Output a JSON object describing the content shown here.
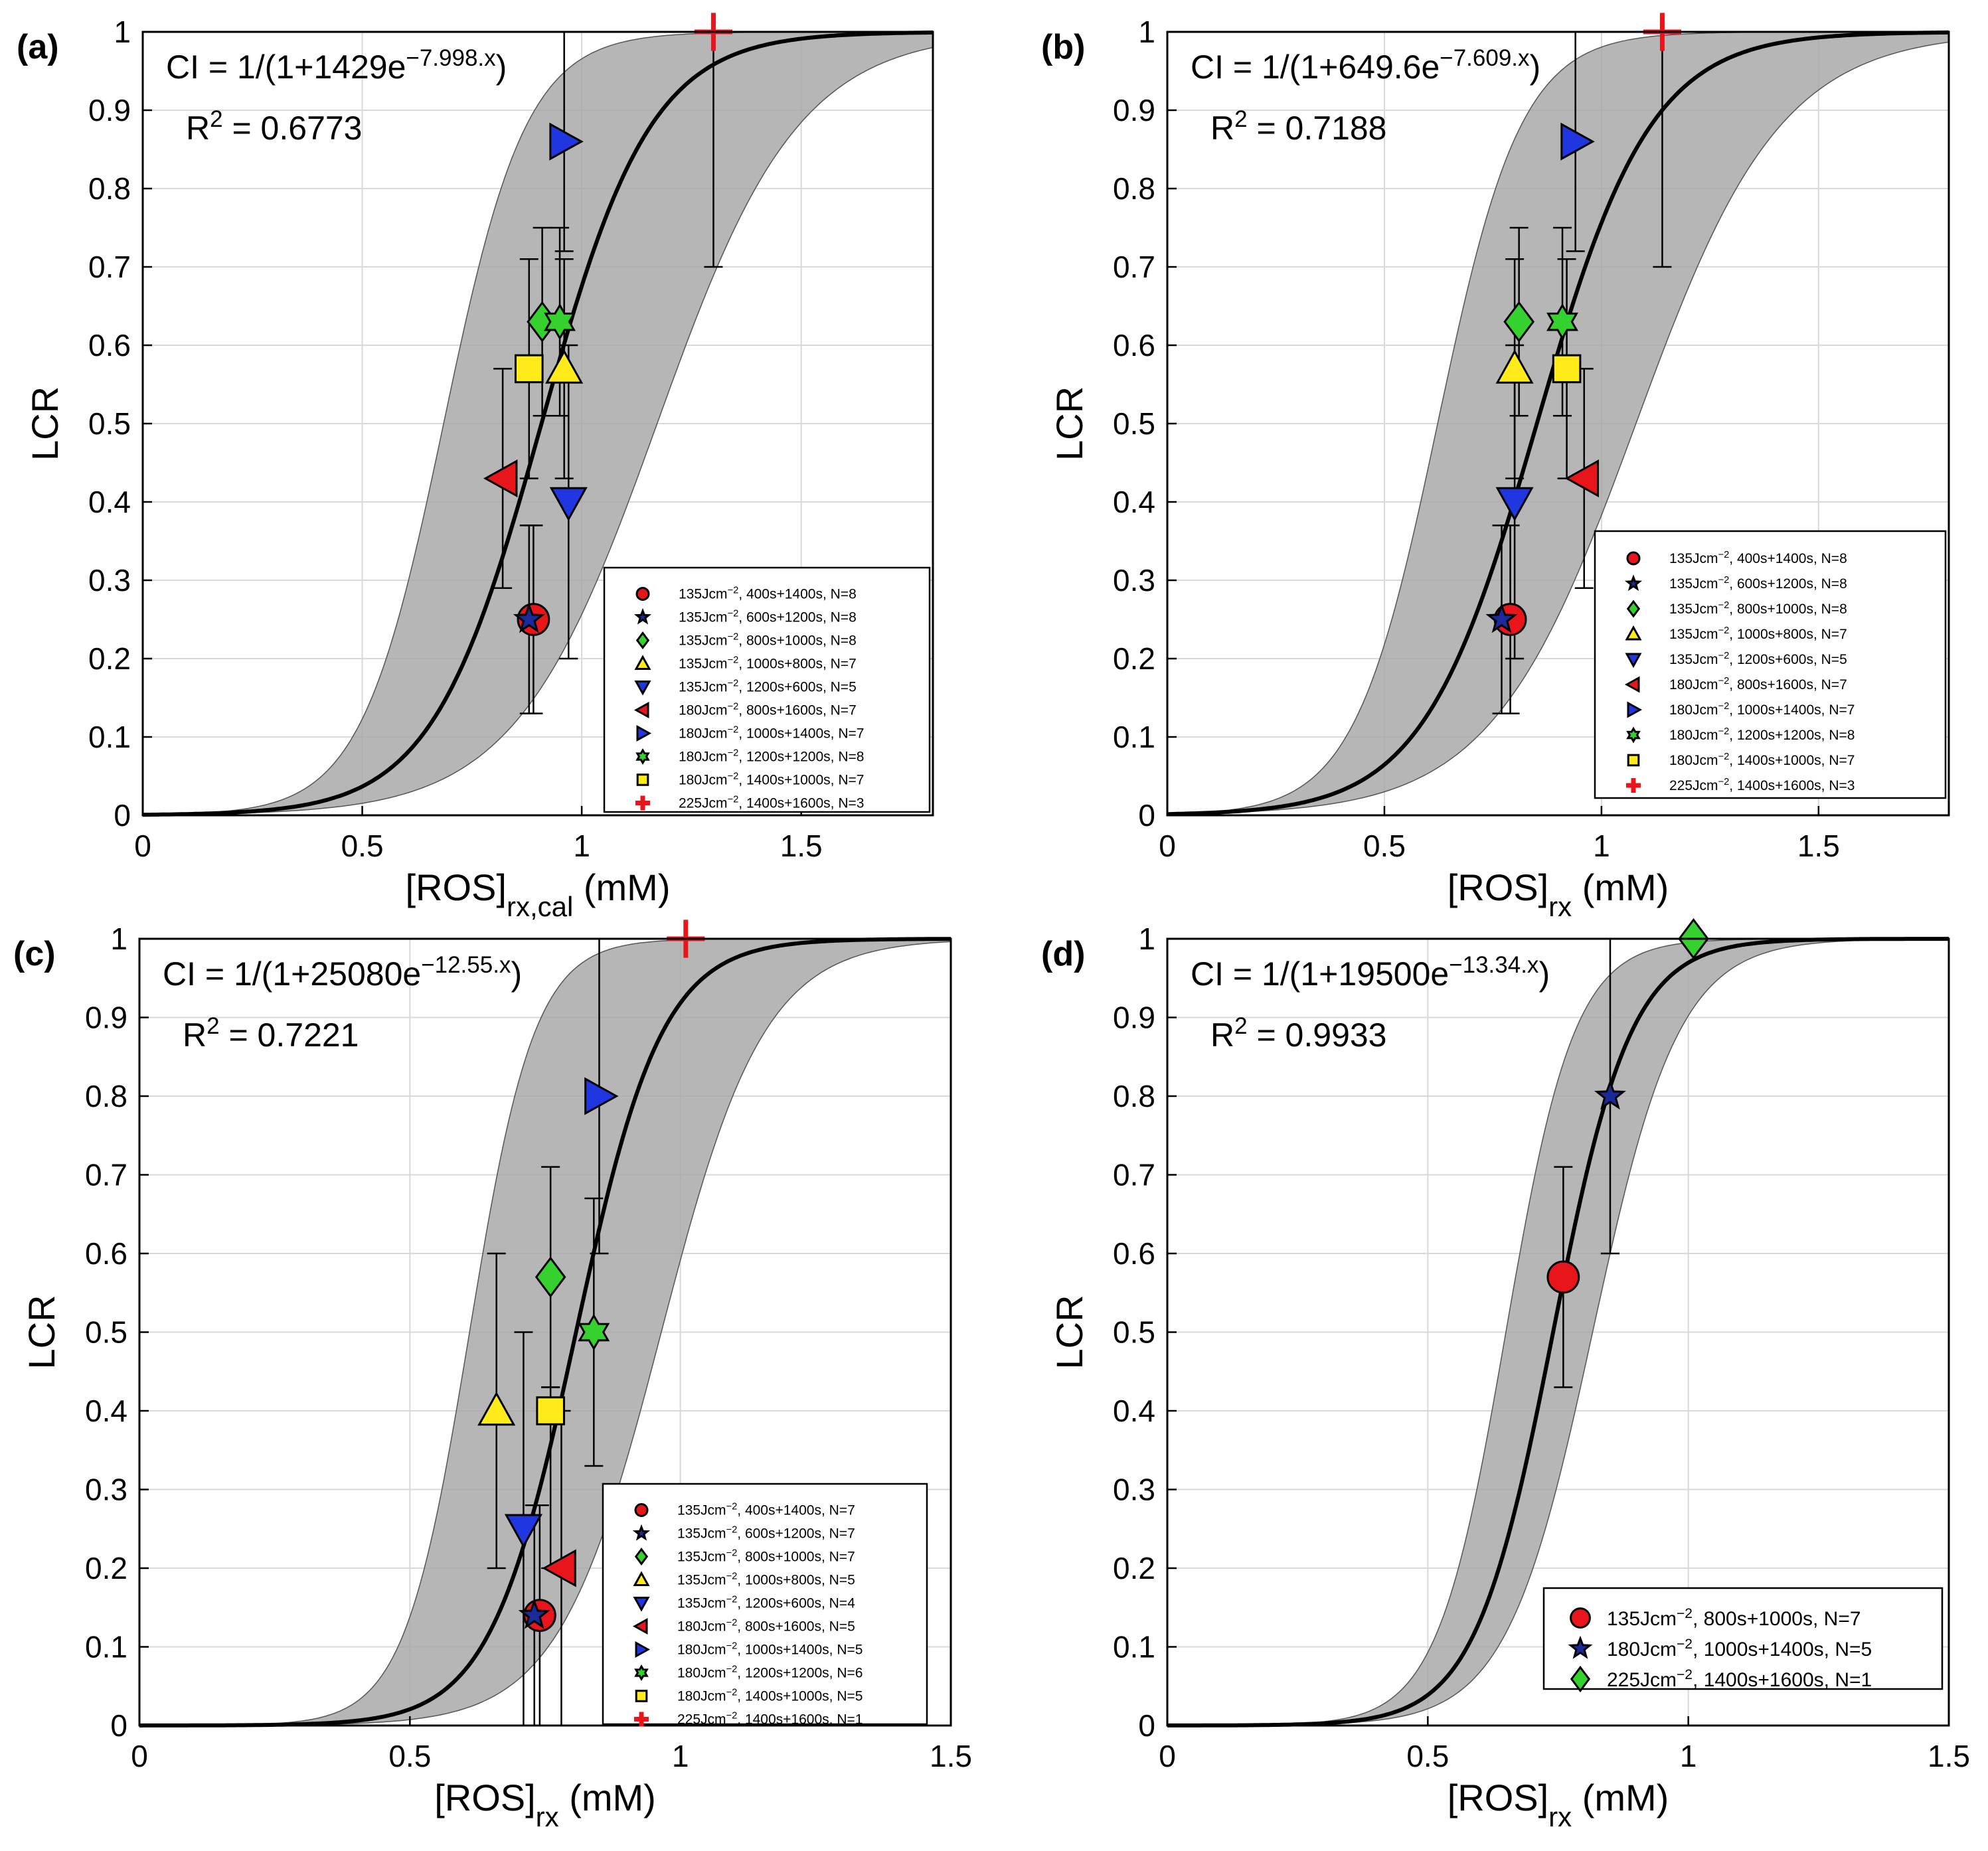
{
  "chart_data": [
    {
      "panel": "(a)",
      "type": "scatter",
      "xlabel": "[ROS]",
      "xlabel_sub": "rx,cal",
      "xlabel_unit": "(mM)",
      "ylabel": "LCR",
      "xlim": [
        0,
        1.8
      ],
      "ylim": [
        0,
        1
      ],
      "xticks": [
        0,
        0.5,
        1,
        1.5
      ],
      "xtick_labels": [
        "0",
        "0.5",
        "1",
        "1.5"
      ],
      "yticks": [
        0,
        0.1,
        0.2,
        0.3,
        0.4,
        0.5,
        0.6,
        0.7,
        0.8,
        0.9,
        1
      ],
      "ytick_labels": [
        "0",
        "0.1",
        "0.2",
        "0.3",
        "0.4",
        "0.5",
        "0.6",
        "0.7",
        "0.8",
        "0.9",
        "1"
      ],
      "grid": true,
      "fit": {
        "A": 1429,
        "k": 7.998,
        "band_low": {
          "A": 1429,
          "k": 10.6
        },
        "band_high": {
          "A": 1429,
          "k": 6.2
        }
      },
      "equation_prefix": "CI = 1/(1+1429e",
      "equation_exp": "−7.998.x",
      "equation_suffix": ")",
      "r2_prefix": "R",
      "r2_exp": "2",
      "r2_suffix": " = 0.6773",
      "legend_position": "bottom-right",
      "points": [
        {
          "label_prefix": "135Jcm",
          "label_exp": "−2",
          "label_suffix": ", 400s+1400s, N=8",
          "marker": "circle",
          "color": "#e8161b",
          "x": 0.89,
          "y": 0.25,
          "err_low": 0.13,
          "err_high": 0.37
        },
        {
          "label_prefix": "135Jcm",
          "label_exp": "−2",
          "label_suffix": ", 600s+1200s, N=8",
          "marker": "star",
          "color": "#1a2a9a",
          "x": 0.88,
          "y": 0.25,
          "err_low": 0.13,
          "err_high": 0.37
        },
        {
          "label_prefix": "135Jcm",
          "label_exp": "−2",
          "label_suffix": ", 800s+1000s, N=8",
          "marker": "diamond",
          "color": "#35d12f",
          "x": 0.91,
          "y": 0.63,
          "err_low": 0.51,
          "err_high": 0.75
        },
        {
          "label_prefix": "135Jcm",
          "label_exp": "−2",
          "label_suffix": ", 1000s+800s, N=7",
          "marker": "triangle-up",
          "color": "#ffea1a",
          "x": 0.96,
          "y": 0.57,
          "err_low": 0.43,
          "err_high": 0.71
        },
        {
          "label_prefix": "135Jcm",
          "label_exp": "−2",
          "label_suffix": ", 1200s+600s, N=5",
          "marker": "triangle-down",
          "color": "#1f36e0",
          "x": 0.97,
          "y": 0.4,
          "err_low": 0.2,
          "err_high": 0.6
        },
        {
          "label_prefix": "180Jcm",
          "label_exp": "−2",
          "label_suffix": ", 800s+1600s, N=7",
          "marker": "triangle-left",
          "color": "#e8161b",
          "x": 0.82,
          "y": 0.43,
          "err_low": 0.29,
          "err_high": 0.57
        },
        {
          "label_prefix": "180Jcm",
          "label_exp": "−2",
          "label_suffix": ", 1000s+1400s, N=7",
          "marker": "triangle-right",
          "color": "#1f36e0",
          "x": 0.96,
          "y": 0.86,
          "err_low": 0.72,
          "err_high": 1.0
        },
        {
          "label_prefix": "180Jcm",
          "label_exp": "−2",
          "label_suffix": ", 1200s+1200s, N=8",
          "marker": "hexagram",
          "color": "#35d12f",
          "x": 0.95,
          "y": 0.63,
          "err_low": 0.51,
          "err_high": 0.75
        },
        {
          "label_prefix": "180Jcm",
          "label_exp": "−2",
          "label_suffix": ", 1400s+1000s, N=7",
          "marker": "square",
          "color": "#ffea1a",
          "x": 0.88,
          "y": 0.57,
          "err_low": 0.43,
          "err_high": 0.71
        },
        {
          "label_prefix": "225Jcm",
          "label_exp": "−2",
          "label_suffix": ", 1400s+1600s, N=3",
          "marker": "plus",
          "color": "#e8161b",
          "x": 1.3,
          "y": 1.0,
          "err_low": 0.7,
          "err_high": 1.0
        }
      ]
    },
    {
      "panel": "(b)",
      "type": "scatter",
      "xlabel": "[ROS]",
      "xlabel_sub": "rx",
      "xlabel_unit": "(mM)",
      "ylabel": "LCR",
      "xlim": [
        0,
        1.8
      ],
      "ylim": [
        0,
        1
      ],
      "xticks": [
        0,
        0.5,
        1,
        1.5
      ],
      "xtick_labels": [
        "0",
        "0.5",
        "1",
        "1.5"
      ],
      "yticks": [
        0,
        0.1,
        0.2,
        0.3,
        0.4,
        0.5,
        0.6,
        0.7,
        0.8,
        0.9,
        1
      ],
      "ytick_labels": [
        "0",
        "0.1",
        "0.2",
        "0.3",
        "0.4",
        "0.5",
        "0.6",
        "0.7",
        "0.8",
        "0.9",
        "1"
      ],
      "grid": true,
      "fit": {
        "A": 649.6,
        "k": 7.609,
        "band_low": {
          "A": 649.6,
          "k": 10.4
        },
        "band_high": {
          "A": 649.6,
          "k": 6.0
        }
      },
      "equation_prefix": "CI = 1/(1+649.6e",
      "equation_exp": "−7.609.x",
      "equation_suffix": ")",
      "r2_prefix": "R",
      "r2_exp": "2",
      "r2_suffix": " = 0.7188",
      "legend_position": "bottom-right",
      "points": [
        {
          "label_prefix": "135Jcm",
          "label_exp": "−2",
          "label_suffix": ", 400s+1400s, N=8",
          "marker": "circle",
          "color": "#e8161b",
          "x": 0.79,
          "y": 0.25,
          "err_low": 0.13,
          "err_high": 0.37
        },
        {
          "label_prefix": "135Jcm",
          "label_exp": "−2",
          "label_suffix": ", 600s+1200s, N=8",
          "marker": "star",
          "color": "#1a2a9a",
          "x": 0.77,
          "y": 0.25,
          "err_low": 0.13,
          "err_high": 0.37
        },
        {
          "label_prefix": "135Jcm",
          "label_exp": "−2",
          "label_suffix": ", 800s+1000s, N=8",
          "marker": "diamond",
          "color": "#35d12f",
          "x": 0.81,
          "y": 0.63,
          "err_low": 0.51,
          "err_high": 0.75
        },
        {
          "label_prefix": "135Jcm",
          "label_exp": "−2",
          "label_suffix": ", 1000s+800s, N=7",
          "marker": "triangle-up",
          "color": "#ffea1a",
          "x": 0.8,
          "y": 0.57,
          "err_low": 0.43,
          "err_high": 0.71
        },
        {
          "label_prefix": "135Jcm",
          "label_exp": "−2",
          "label_suffix": ", 1200s+600s, N=5",
          "marker": "triangle-down",
          "color": "#1f36e0",
          "x": 0.8,
          "y": 0.4,
          "err_low": 0.2,
          "err_high": 0.6
        },
        {
          "label_prefix": "180Jcm",
          "label_exp": "−2",
          "label_suffix": ", 800s+1600s, N=7",
          "marker": "triangle-left",
          "color": "#e8161b",
          "x": 0.96,
          "y": 0.43,
          "err_low": 0.29,
          "err_high": 0.57
        },
        {
          "label_prefix": "180Jcm",
          "label_exp": "−2",
          "label_suffix": ", 1000s+1400s, N=7",
          "marker": "triangle-right",
          "color": "#1f36e0",
          "x": 0.94,
          "y": 0.86,
          "err_low": 0.72,
          "err_high": 1.0
        },
        {
          "label_prefix": "180Jcm",
          "label_exp": "−2",
          "label_suffix": ", 1200s+1200s, N=8",
          "marker": "hexagram",
          "color": "#35d12f",
          "x": 0.91,
          "y": 0.63,
          "err_low": 0.51,
          "err_high": 0.75
        },
        {
          "label_prefix": "180Jcm",
          "label_exp": "−2",
          "label_suffix": ", 1400s+1000s, N=7",
          "marker": "square",
          "color": "#ffea1a",
          "x": 0.92,
          "y": 0.57,
          "err_low": 0.43,
          "err_high": 0.71
        },
        {
          "label_prefix": "225Jcm",
          "label_exp": "−2",
          "label_suffix": ", 1400s+1600s, N=3",
          "marker": "plus",
          "color": "#e8161b",
          "x": 1.14,
          "y": 1.0,
          "err_low": 0.7,
          "err_high": 1.0
        }
      ]
    },
    {
      "panel": "(c)",
      "type": "scatter",
      "xlabel": "[ROS]",
      "xlabel_sub": "rx",
      "xlabel_unit": "(mM)",
      "ylabel": "LCR",
      "xlim": [
        0,
        1.5
      ],
      "ylim": [
        0,
        1
      ],
      "xticks": [
        0,
        0.5,
        1,
        1.5
      ],
      "xtick_labels": [
        "0",
        "0.5",
        "1",
        "1.5"
      ],
      "yticks": [
        0,
        0.1,
        0.2,
        0.3,
        0.4,
        0.5,
        0.6,
        0.7,
        0.8,
        0.9,
        1
      ],
      "ytick_labels": [
        "0",
        "0.1",
        "0.2",
        "0.3",
        "0.4",
        "0.5",
        "0.6",
        "0.7",
        "0.8",
        "0.9",
        "1"
      ],
      "grid": true,
      "fit": {
        "A": 25080,
        "k": 12.55,
        "band_low": {
          "A": 25080,
          "k": 16.6
        },
        "band_high": {
          "A": 25080,
          "k": 10.5
        }
      },
      "equation_prefix": "CI = 1/(1+25080e",
      "equation_exp": "−12.55.x",
      "equation_suffix": ")",
      "r2_prefix": "R",
      "r2_exp": "2",
      "r2_suffix": " = 0.7221",
      "legend_position": "bottom-right",
      "points": [
        {
          "label_prefix": "135Jcm",
          "label_exp": "−2",
          "label_suffix": ", 400s+1400s, N=7",
          "marker": "circle",
          "color": "#e8161b",
          "x": 0.74,
          "y": 0.14,
          "err_low": 0.0,
          "err_high": 0.28
        },
        {
          "label_prefix": "135Jcm",
          "label_exp": "−2",
          "label_suffix": ", 600s+1200s, N=7",
          "marker": "star",
          "color": "#1a2a9a",
          "x": 0.73,
          "y": 0.14,
          "err_low": 0.0,
          "err_high": 0.28
        },
        {
          "label_prefix": "135Jcm",
          "label_exp": "−2",
          "label_suffix": ", 800s+1000s, N=7",
          "marker": "diamond",
          "color": "#35d12f",
          "x": 0.76,
          "y": 0.57,
          "err_low": 0.43,
          "err_high": 0.71
        },
        {
          "label_prefix": "135Jcm",
          "label_exp": "−2",
          "label_suffix": ", 1000s+800s, N=5",
          "marker": "triangle-up",
          "color": "#ffea1a",
          "x": 0.66,
          "y": 0.4,
          "err_low": 0.2,
          "err_high": 0.6
        },
        {
          "label_prefix": "135Jcm",
          "label_exp": "−2",
          "label_suffix": ", 1200s+600s, N=4",
          "marker": "triangle-down",
          "color": "#1f36e0",
          "x": 0.71,
          "y": 0.25,
          "err_low": 0.0,
          "err_high": 0.5
        },
        {
          "label_prefix": "180Jcm",
          "label_exp": "−2",
          "label_suffix": ", 800s+1600s, N=5",
          "marker": "triangle-left",
          "color": "#e8161b",
          "x": 0.78,
          "y": 0.2,
          "err_low": 0.0,
          "err_high": 0.4
        },
        {
          "label_prefix": "180Jcm",
          "label_exp": "−2",
          "label_suffix": ", 1000s+1400s, N=5",
          "marker": "triangle-right",
          "color": "#1f36e0",
          "x": 0.85,
          "y": 0.8,
          "err_low": 0.6,
          "err_high": 1.0
        },
        {
          "label_prefix": "180Jcm",
          "label_exp": "−2",
          "label_suffix": ", 1200s+1200s, N=6",
          "marker": "hexagram",
          "color": "#35d12f",
          "x": 0.84,
          "y": 0.5,
          "err_low": 0.33,
          "err_high": 0.67
        },
        {
          "label_prefix": "180Jcm",
          "label_exp": "−2",
          "label_suffix": ", 1400s+1000s, N=5",
          "marker": "square",
          "color": "#ffea1a",
          "x": 0.76,
          "y": 0.4,
          "err_low": 0.2,
          "err_high": 0.43
        },
        {
          "label_prefix": "225Jcm",
          "label_exp": "−2",
          "label_suffix": ", 1400s+1600s, N=1",
          "marker": "plus",
          "color": "#e8161b",
          "x": 1.01,
          "y": 1.0,
          "err_low": 1.0,
          "err_high": 1.0
        }
      ]
    },
    {
      "panel": "(d)",
      "type": "scatter",
      "xlabel": "[ROS]",
      "xlabel_sub": "rx",
      "xlabel_unit": "(mM)",
      "ylabel": "LCR",
      "xlim": [
        0,
        1.5
      ],
      "ylim": [
        0,
        1
      ],
      "xticks": [
        0,
        0.5,
        1,
        1.5
      ],
      "xtick_labels": [
        "0",
        "0.5",
        "1",
        "1.5"
      ],
      "yticks": [
        0,
        0.1,
        0.2,
        0.3,
        0.4,
        0.5,
        0.6,
        0.7,
        0.8,
        0.9,
        1
      ],
      "ytick_labels": [
        "0",
        "0.1",
        "0.2",
        "0.3",
        "0.4",
        "0.5",
        "0.6",
        "0.7",
        "0.8",
        "0.9",
        "1"
      ],
      "grid": true,
      "fit": {
        "A": 19500,
        "k": 13.34,
        "band_low": {
          "A": 19500,
          "k": 15.2
        },
        "band_high": {
          "A": 19500,
          "k": 12.1
        }
      },
      "equation_prefix": "CI = 1/(1+19500e",
      "equation_exp": "−13.34.x",
      "equation_suffix": ")",
      "r2_prefix": "R",
      "r2_exp": "2",
      "r2_suffix": " = 0.9933",
      "legend_position": "bottom-right",
      "points": [
        {
          "label_prefix": "135Jcm",
          "label_exp": "−2",
          "label_suffix": ", 800s+1000s, N=7",
          "marker": "circle",
          "color": "#e8161b",
          "x": 0.76,
          "y": 0.57,
          "err_low": 0.43,
          "err_high": 0.71
        },
        {
          "label_prefix": "180Jcm",
          "label_exp": "−2",
          "label_suffix": ", 1000s+1400s, N=5",
          "marker": "star",
          "color": "#1a2a9a",
          "x": 0.85,
          "y": 0.8,
          "err_low": 0.6,
          "err_high": 1.0
        },
        {
          "label_prefix": "225Jcm",
          "label_exp": "−2",
          "label_suffix": ", 1400s+1600s, N=1",
          "marker": "diamond",
          "color": "#35d12f",
          "x": 1.01,
          "y": 1.0,
          "err_low": 1.0,
          "err_high": 1.0
        }
      ]
    }
  ]
}
